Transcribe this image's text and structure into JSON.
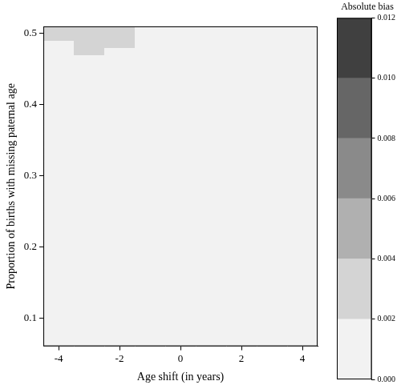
{
  "chart_data": {
    "type": "heatmap",
    "x_label": "Age shift (in years)",
    "y_label": "Proportion of births with missing paternal age",
    "x": [
      -4,
      -3,
      -2,
      -1,
      0,
      1,
      2,
      3,
      4
    ],
    "y": [
      0.065,
      0.075,
      0.085,
      0.095,
      0.105,
      0.115,
      0.125,
      0.135,
      0.145,
      0.155,
      0.165,
      0.175,
      0.185,
      0.195,
      0.205,
      0.215,
      0.225,
      0.235,
      0.245,
      0.255,
      0.265,
      0.275,
      0.285,
      0.295,
      0.305,
      0.315,
      0.325,
      0.335,
      0.345,
      0.355,
      0.365,
      0.375,
      0.385,
      0.395,
      0.405,
      0.415,
      0.425,
      0.435,
      0.445,
      0.455,
      0.465,
      0.475,
      0.485,
      0.495,
      0.505
    ],
    "cells": [
      [
        0.001,
        0.001,
        0.001,
        0.001,
        0.001,
        0.001,
        0.001,
        0.001,
        0.001
      ],
      [
        0.001,
        0.001,
        0.001,
        0.001,
        0.001,
        0.001,
        0.001,
        0.001,
        0.001
      ],
      [
        0.001,
        0.001,
        0.001,
        0.001,
        0.001,
        0.001,
        0.001,
        0.001,
        0.001
      ],
      [
        0.001,
        0.001,
        0.001,
        0.001,
        0.001,
        0.001,
        0.001,
        0.001,
        0.001
      ],
      [
        0.001,
        0.001,
        0.001,
        0.001,
        0.001,
        0.001,
        0.001,
        0.001,
        0.001
      ],
      [
        0.001,
        0.001,
        0.001,
        0.001,
        0.001,
        0.001,
        0.001,
        0.001,
        0.001
      ],
      [
        0.001,
        0.001,
        0.001,
        0.001,
        0.001,
        0.001,
        0.001,
        0.001,
        0.001
      ],
      [
        0.001,
        0.001,
        0.001,
        0.001,
        0.001,
        0.001,
        0.001,
        0.001,
        0.001
      ],
      [
        0.001,
        0.001,
        0.001,
        0.001,
        0.001,
        0.001,
        0.001,
        0.001,
        0.001
      ],
      [
        0.001,
        0.001,
        0.001,
        0.001,
        0.001,
        0.001,
        0.001,
        0.001,
        0.001
      ],
      [
        0.001,
        0.001,
        0.001,
        0.001,
        0.001,
        0.001,
        0.001,
        0.001,
        0.001
      ],
      [
        0.001,
        0.001,
        0.001,
        0.001,
        0.001,
        0.001,
        0.001,
        0.001,
        0.001
      ],
      [
        0.001,
        0.001,
        0.001,
        0.001,
        0.001,
        0.001,
        0.001,
        0.001,
        0.001
      ],
      [
        0.001,
        0.001,
        0.001,
        0.001,
        0.001,
        0.001,
        0.001,
        0.001,
        0.001
      ],
      [
        0.001,
        0.001,
        0.001,
        0.001,
        0.001,
        0.001,
        0.001,
        0.001,
        0.001
      ],
      [
        0.001,
        0.001,
        0.001,
        0.001,
        0.001,
        0.001,
        0.001,
        0.001,
        0.001
      ],
      [
        0.001,
        0.001,
        0.001,
        0.001,
        0.001,
        0.001,
        0.001,
        0.001,
        0.001
      ],
      [
        0.001,
        0.001,
        0.001,
        0.001,
        0.001,
        0.001,
        0.001,
        0.001,
        0.001
      ],
      [
        0.001,
        0.001,
        0.001,
        0.001,
        0.001,
        0.001,
        0.001,
        0.001,
        0.001
      ],
      [
        0.001,
        0.001,
        0.001,
        0.001,
        0.001,
        0.001,
        0.001,
        0.001,
        0.001
      ],
      [
        0.001,
        0.001,
        0.001,
        0.001,
        0.001,
        0.001,
        0.001,
        0.001,
        0.001
      ],
      [
        0.001,
        0.001,
        0.001,
        0.001,
        0.001,
        0.001,
        0.001,
        0.001,
        0.001
      ],
      [
        0.001,
        0.001,
        0.001,
        0.001,
        0.001,
        0.001,
        0.001,
        0.001,
        0.001
      ],
      [
        0.001,
        0.001,
        0.001,
        0.001,
        0.001,
        0.001,
        0.001,
        0.001,
        0.001
      ],
      [
        0.001,
        0.001,
        0.001,
        0.001,
        0.001,
        0.001,
        0.001,
        0.001,
        0.001
      ],
      [
        0.001,
        0.001,
        0.001,
        0.001,
        0.001,
        0.001,
        0.001,
        0.001,
        0.001
      ],
      [
        0.001,
        0.001,
        0.001,
        0.001,
        0.001,
        0.001,
        0.001,
        0.001,
        0.001
      ],
      [
        0.001,
        0.001,
        0.001,
        0.001,
        0.001,
        0.001,
        0.001,
        0.001,
        0.001
      ],
      [
        0.001,
        0.001,
        0.001,
        0.001,
        0.001,
        0.001,
        0.001,
        0.001,
        0.001
      ],
      [
        0.001,
        0.001,
        0.001,
        0.001,
        0.001,
        0.001,
        0.001,
        0.001,
        0.001
      ],
      [
        0.001,
        0.001,
        0.001,
        0.001,
        0.001,
        0.001,
        0.001,
        0.001,
        0.001
      ],
      [
        0.001,
        0.001,
        0.001,
        0.001,
        0.001,
        0.001,
        0.001,
        0.001,
        0.001
      ],
      [
        0.001,
        0.001,
        0.001,
        0.001,
        0.001,
        0.001,
        0.001,
        0.001,
        0.001
      ],
      [
        0.001,
        0.001,
        0.001,
        0.001,
        0.001,
        0.001,
        0.001,
        0.001,
        0.001
      ],
      [
        0.001,
        0.001,
        0.001,
        0.001,
        0.001,
        0.001,
        0.001,
        0.001,
        0.001
      ],
      [
        0.001,
        0.001,
        0.001,
        0.001,
        0.001,
        0.001,
        0.001,
        0.001,
        0.001
      ],
      [
        0.001,
        0.001,
        0.001,
        0.001,
        0.001,
        0.001,
        0.001,
        0.001,
        0.001
      ],
      [
        0.001,
        0.001,
        0.001,
        0.001,
        0.001,
        0.001,
        0.001,
        0.001,
        0.001
      ],
      [
        0.001,
        0.001,
        0.001,
        0.001,
        0.001,
        0.001,
        0.001,
        0.001,
        0.001
      ],
      [
        0.001,
        0.001,
        0.001,
        0.001,
        0.001,
        0.001,
        0.001,
        0.001,
        0.001
      ],
      [
        0.001,
        0.001,
        0.001,
        0.001,
        0.001,
        0.001,
        0.001,
        0.001,
        0.001
      ],
      [
        0.001,
        0.003,
        0.001,
        0.001,
        0.001,
        0.001,
        0.001,
        0.001,
        0.001
      ],
      [
        0.001,
        0.003,
        0.003,
        0.001,
        0.001,
        0.001,
        0.001,
        0.001,
        0.001
      ],
      [
        0.003,
        0.003,
        0.003,
        0.001,
        0.001,
        0.001,
        0.001,
        0.001,
        0.001
      ],
      [
        0.003,
        0.003,
        0.003,
        0.001,
        0.001,
        0.001,
        0.001,
        0.001,
        0.001
      ]
    ],
    "xlim": [
      -4.5,
      4.5
    ],
    "xticks": [
      -4,
      -2,
      0,
      2,
      4
    ],
    "ylim": [
      0.06,
      0.51
    ],
    "yticks": [
      0.1,
      0.2,
      0.3,
      0.4,
      0.5
    ],
    "grid": false,
    "colorbar": {
      "title": "Absolute bias",
      "range": [
        0,
        0.012
      ],
      "ticks": [
        {
          "value": 0,
          "label": "0.000"
        },
        {
          "value": 0.002,
          "label": "0.002"
        },
        {
          "value": 0.004,
          "label": "0.004"
        },
        {
          "value": 0.006,
          "label": "0.006"
        },
        {
          "value": 0.008,
          "label": "0.008"
        },
        {
          "value": 0.01,
          "label": "0.010"
        },
        {
          "value": 0.012,
          "label": "0.012"
        }
      ],
      "colors": [
        "#f2f2f2",
        "#d4d4d4",
        "#b0b0b0",
        "#8a8a8a",
        "#666666",
        "#404040"
      ]
    }
  }
}
